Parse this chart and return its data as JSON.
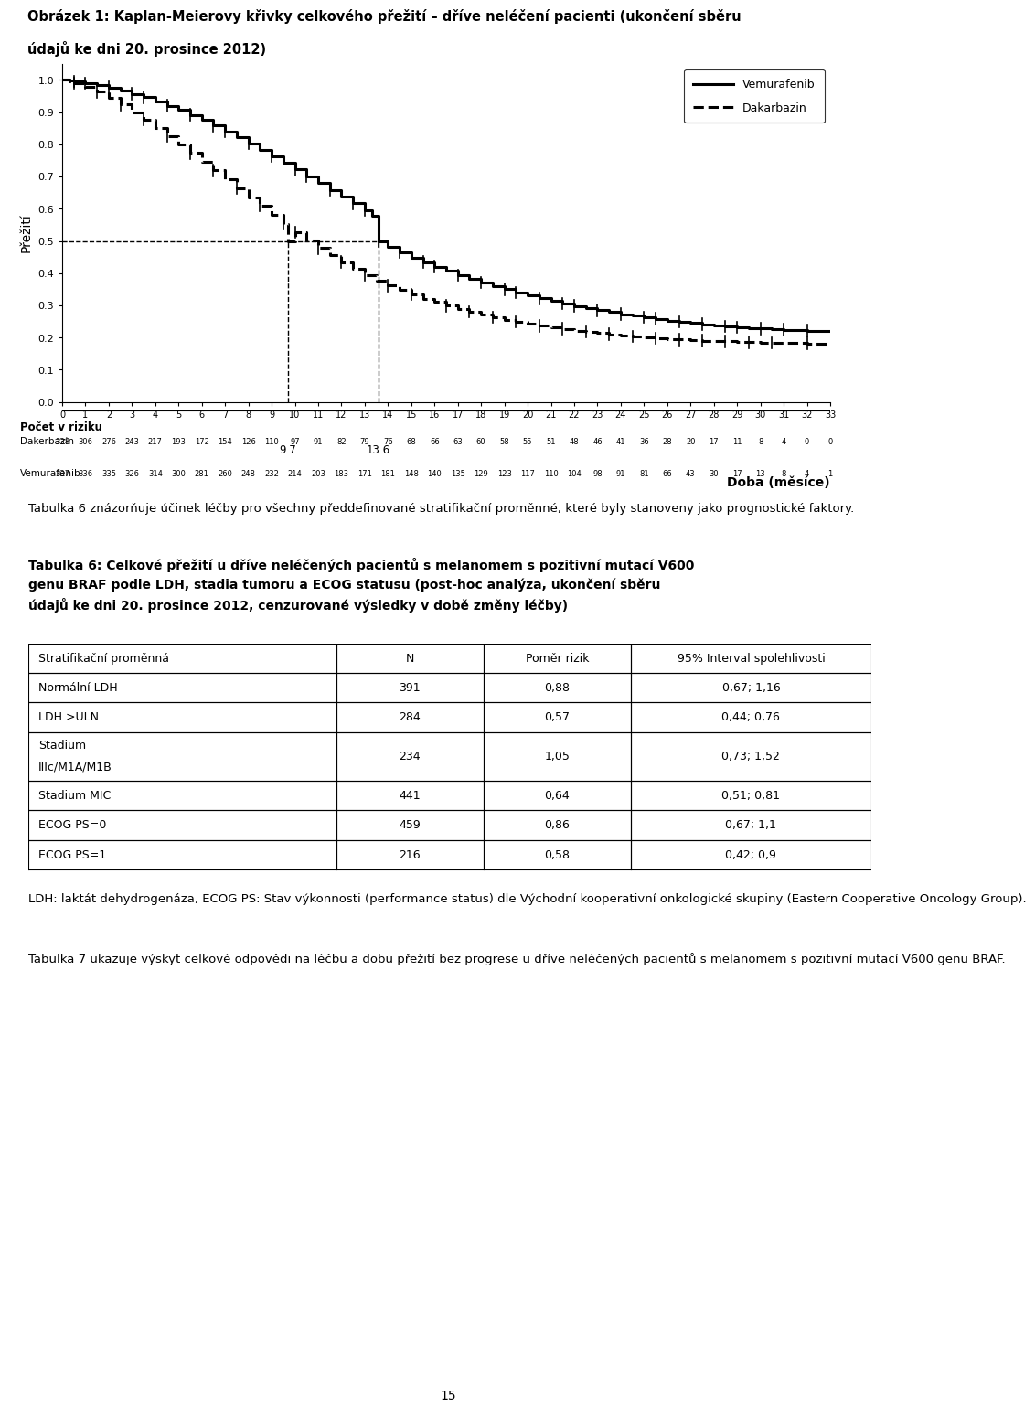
{
  "page_title_line1": "Obrázek 1: Kaplan-Meierovy křivky celkového přežití – dříve neléčení pacienti (ukončení sběru",
  "page_title_line2": "údajů ke dni 20. prosince 2012)",
  "plot_ylabel": "Přežití",
  "plot_xlabel": "Doba (měsíce)",
  "plot_xlim": [
    0,
    33
  ],
  "plot_ylim": [
    0.0,
    1.05
  ],
  "plot_yticks": [
    0.0,
    0.1,
    0.2,
    0.3,
    0.4,
    0.5,
    0.6,
    0.7,
    0.8,
    0.9,
    1.0
  ],
  "plot_xticks": [
    0,
    1,
    2,
    3,
    4,
    5,
    6,
    7,
    8,
    9,
    10,
    11,
    12,
    13,
    14,
    15,
    16,
    17,
    18,
    19,
    20,
    21,
    22,
    23,
    24,
    25,
    26,
    27,
    28,
    29,
    30,
    31,
    32,
    33
  ],
  "median_vem": 13.6,
  "median_dak": 9.7,
  "legend_entries": [
    "Vemurafenib",
    "Dakarbazin"
  ],
  "risk_table_title": "Počet v riziku",
  "risk_rows": [
    {
      "label": "Dakerbazin",
      "values": [
        338,
        306,
        276,
        243,
        217,
        193,
        172,
        154,
        126,
        110,
        97,
        91,
        82,
        79,
        76,
        68,
        66,
        63,
        60,
        58,
        55,
        51,
        48,
        46,
        41,
        36,
        28,
        20,
        17,
        11,
        8,
        4,
        0,
        0
      ]
    },
    {
      "label": "Vemurafenib",
      "values": [
        337,
        336,
        335,
        326,
        314,
        300,
        281,
        260,
        248,
        232,
        214,
        203,
        183,
        171,
        181,
        148,
        140,
        135,
        129,
        123,
        117,
        110,
        104,
        98,
        91,
        81,
        66,
        43,
        30,
        17,
        13,
        8,
        4,
        1
      ]
    }
  ],
  "para1": "Tabulka 6 znázorňuje účinek léčby pro všechny předdefinované stratifikační proměnné, které byly stanoveny jako prognostické faktory.",
  "table_title": "Tabulka 6: Celkové přežití u dříve neléčených pacientů s melanomem s pozitivní mutací V600\ngenu BRAF podle LDH, stadia tumoru a ECOG statusu (post-hoc analýza, ukončení sběru\núdajů ke dni 20. prosince 2012, cenzurované výsledky v době změny léčby)",
  "table_headers": [
    "Stratifikační proměnná",
    "N",
    "Poměr rizik",
    "95% Interval spolehlivosti"
  ],
  "table_rows": [
    [
      "Normální LDH",
      "391",
      "0,88",
      "0,67; 1,16"
    ],
    [
      "LDH >ULN",
      "284",
      "0,57",
      "0,44; 0,76"
    ],
    [
      "Stadium\nIIIc/M1A/M1B",
      "234",
      "1,05",
      "0,73; 1,52"
    ],
    [
      "Stadium MIC",
      "441",
      "0,64",
      "0,51; 0,81"
    ],
    [
      "ECOG PS=0",
      "459",
      "0,86",
      "0,67; 1,1"
    ],
    [
      "ECOG PS=1",
      "216",
      "0,58",
      "0,42; 0,9"
    ]
  ],
  "footnote": "LDH: laktát dehydrogenáza, ECOG PS: Stav výkonnosti (performance status) dle Východní kooperativní onkologické skupiny (Eastern Cooperative Oncology Group).",
  "para2": "Tabulka 7 ukazuje výskyt celkové odpovědi na léčbu a dobu přežití bez progrese u dříve neléčených pacientů s melanomem s pozitivní mutací V600 genu BRAF.",
  "page_number": "15",
  "background_color": "#ffffff",
  "text_color": "#000000"
}
